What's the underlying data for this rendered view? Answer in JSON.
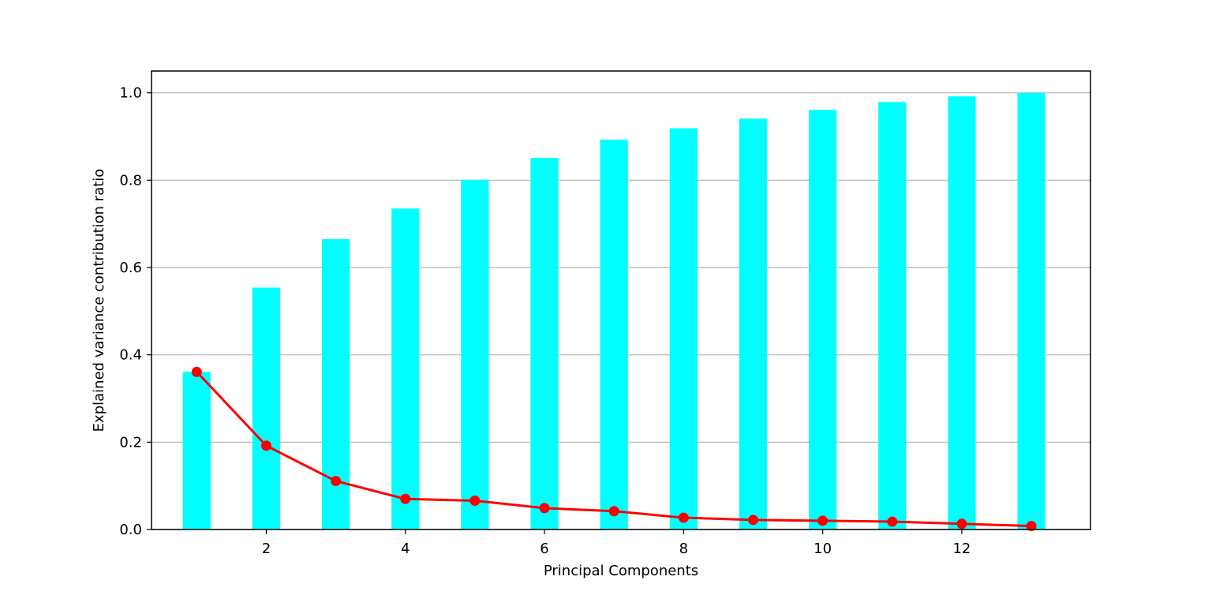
{
  "chart_data": {
    "type": "bar",
    "title": "",
    "xlabel": "Principal Components",
    "ylabel": "Explained variance contribution ratio",
    "x": [
      1,
      2,
      3,
      4,
      5,
      6,
      7,
      8,
      9,
      10,
      11,
      12,
      13
    ],
    "xticks": [
      2,
      4,
      6,
      8,
      10,
      12
    ],
    "xtick_labels": [
      "2",
      "4",
      "6",
      "8",
      "10",
      "12"
    ],
    "xlim": [
      0.35,
      13.85
    ],
    "ylim": [
      0,
      1.05
    ],
    "yticks": [
      0.0,
      0.2,
      0.4,
      0.6,
      0.8,
      1.0
    ],
    "ytick_labels": [
      "0.0",
      "0.2",
      "0.4",
      "0.6",
      "0.8",
      "1.0"
    ],
    "grid": "y",
    "legend": "none",
    "series": [
      {
        "type": "bar",
        "color": "#00ffff",
        "values": [
          0.361,
          0.554,
          0.665,
          0.735,
          0.801,
          0.851,
          0.893,
          0.919,
          0.941,
          0.961,
          0.979,
          0.992,
          1.0
        ]
      },
      {
        "type": "line",
        "color": "#ff0000",
        "marker": "circle",
        "values": [
          0.361,
          0.192,
          0.111,
          0.07,
          0.066,
          0.049,
          0.042,
          0.027,
          0.022,
          0.02,
          0.018,
          0.013,
          0.008
        ]
      }
    ]
  }
}
